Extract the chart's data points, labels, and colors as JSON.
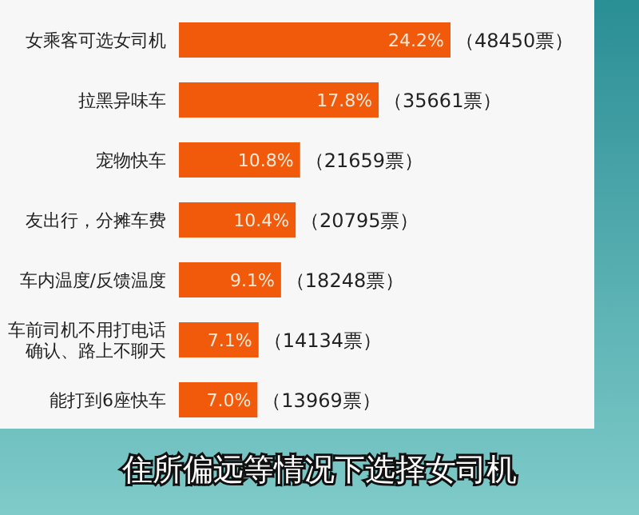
{
  "chart_data": {
    "type": "bar",
    "orientation": "horizontal",
    "categories": [
      "女乘客可选女司机",
      "拉黑异味车",
      "宠物快车",
      "友出行，分摊车费",
      "车内温度/反馈温度",
      "车前司机不用打电话确认、路上不聊天",
      "能打到6座快车"
    ],
    "values": [
      24.2,
      17.8,
      10.8,
      10.4,
      9.1,
      7.1,
      7.0
    ],
    "color": "#f05a0a",
    "value_labels": [
      "24.2%",
      "17.8%",
      "10.8%",
      "10.4%",
      "9.1%",
      "7.1%",
      "7.0%"
    ],
    "tick_labels": "y",
    "annotations": [
      {
        "text": "（48450票）",
        "x": 24.2,
        "y": "女乘客可选女司机"
      },
      {
        "text": "（35661票）",
        "x": 17.8,
        "y": "拉黑异味车"
      },
      {
        "text": "（21659票）",
        "x": 10.8,
        "y": "宠物快车"
      },
      {
        "text": "（20795票）",
        "x": 10.4,
        "y": "友出行，分摊车费"
      },
      {
        "text": "（18248票）",
        "x": 9.1,
        "y": "车内温度/反馈温度"
      },
      {
        "text": "（14134票）",
        "x": 7.1,
        "y": "车前司机不用打电话确认、路上不聊天"
      },
      {
        "text": "（13969票）",
        "x": 7.0,
        "y": "能打到6座快车"
      },
      "住所偏远等情况下选择女司机"
    ]
  }
}
